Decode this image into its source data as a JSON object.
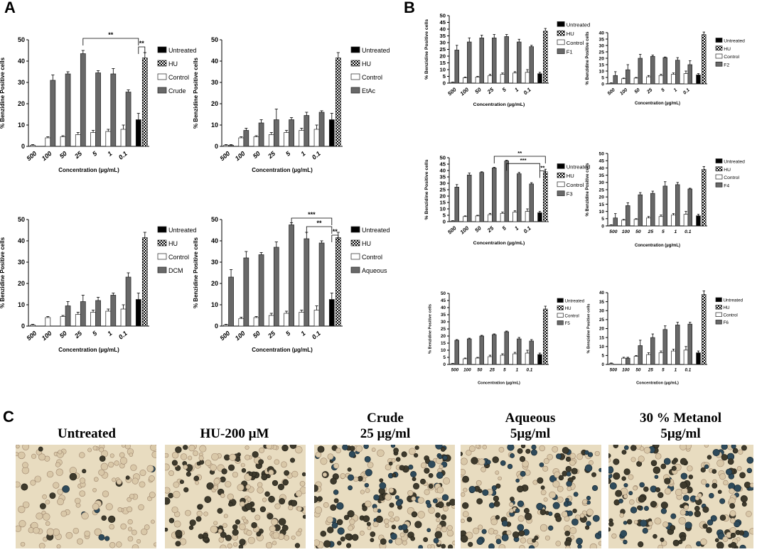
{
  "panels": {
    "a": "A",
    "b": "B",
    "c": "C"
  },
  "colors": {
    "treatment": "#686868",
    "control": "#ffffff",
    "untreated": "#000000",
    "hu_check": "#000000",
    "bar_edge": "#222222",
    "photo_bg": "#e8dcc0"
  },
  "chart_data": [
    {
      "type": "bar",
      "panel": "A",
      "treatment": "Crude",
      "ylabel": "% Benzidine Positive cells",
      "xlabel": "Concentration (µg/mL)",
      "ylim": [
        0,
        50
      ],
      "yticks": [
        0,
        10,
        20,
        30,
        40,
        50
      ],
      "categories": [
        "500",
        "100",
        "50",
        "25",
        "5",
        "1",
        "0.1"
      ],
      "series": [
        {
          "name": "Crude",
          "values": [
            0,
            31,
            34,
            43.5,
            34.5,
            34,
            25.5
          ],
          "errors": [
            0,
            2.5,
            1,
            1.5,
            1,
            2.5,
            1
          ]
        },
        {
          "name": "Control",
          "values": [
            0.5,
            4,
            4.5,
            5.5,
            6.5,
            7,
            8
          ],
          "errors": [
            0.3,
            0.5,
            0.5,
            1,
            1,
            1,
            2
          ]
        }
      ],
      "untreated": {
        "name": "Untreated",
        "value": 12.5,
        "error": 3
      },
      "hu": {
        "name": "HU",
        "value": 41.5,
        "error": 2.5
      },
      "legend": [
        "Untreated",
        "HU",
        "Control",
        "Crude"
      ],
      "significance": [
        {
          "label": "**",
          "from": "25",
          "to": "ctrl"
        },
        {
          "label": "**",
          "from": "ctrl",
          "to": "hu"
        }
      ]
    },
    {
      "type": "bar",
      "panel": "A",
      "treatment": "EtAc",
      "ylabel": "% Benzidine Positive cells",
      "xlabel": "Concentration (µg/mL)",
      "ylim": [
        0,
        50
      ],
      "yticks": [
        0,
        10,
        20,
        30,
        40,
        50
      ],
      "categories": [
        "500",
        "100",
        "50",
        "25",
        "5",
        "1",
        "0.1"
      ],
      "series": [
        {
          "name": "EtAc",
          "values": [
            0.5,
            7.5,
            11,
            12.5,
            12.5,
            14.5,
            16
          ],
          "errors": [
            0.3,
            1,
            1.5,
            5,
            1,
            1.5,
            0.7
          ]
        },
        {
          "name": "Control",
          "values": [
            0.5,
            4,
            4.5,
            5.5,
            6.5,
            7.5,
            8
          ],
          "errors": [
            0.3,
            0.5,
            0.5,
            1,
            1,
            1,
            2
          ]
        }
      ],
      "untreated": {
        "name": "Untreated",
        "value": 12.5,
        "error": 3
      },
      "hu": {
        "name": "HU",
        "value": 41.5,
        "error": 2.5
      },
      "legend": [
        "Untreated",
        "HU",
        "Control",
        "EtAc"
      ],
      "significance": []
    },
    {
      "type": "bar",
      "panel": "A",
      "treatment": "DCM",
      "ylabel": "% Benzidine Positive cells",
      "xlabel": "Concentration (µg/mL)",
      "ylim": [
        0,
        50
      ],
      "yticks": [
        0,
        10,
        20,
        30,
        40,
        50
      ],
      "categories": [
        "500",
        "100",
        "50",
        "25",
        "5",
        "1",
        "0.1"
      ],
      "series": [
        {
          "name": "DCM",
          "values": [
            0,
            0,
            9.5,
            11.5,
            12,
            14.5,
            23
          ],
          "errors": [
            0,
            0,
            2,
            3,
            1.5,
            1,
            2
          ]
        },
        {
          "name": "Control",
          "values": [
            0.5,
            4,
            4.5,
            5.5,
            6.5,
            7,
            8
          ],
          "errors": [
            0.3,
            0.5,
            0.5,
            1,
            1,
            1,
            2
          ]
        }
      ],
      "untreated": {
        "name": "Untreated",
        "value": 12.5,
        "error": 3
      },
      "hu": {
        "name": "HU",
        "value": 41.5,
        "error": 2.5
      },
      "legend": [
        "Untreated",
        "HU",
        "Control",
        "DCM"
      ],
      "significance": []
    },
    {
      "type": "bar",
      "panel": "A",
      "treatment": "Aqueous",
      "ylabel": "% Benzidine Positive cells",
      "xlabel": "Concentration (µg/mL)",
      "ylim": [
        0,
        50
      ],
      "yticks": [
        0,
        10,
        20,
        30,
        40,
        50
      ],
      "categories": [
        "500",
        "100",
        "50",
        "25",
        "5",
        "1",
        "0.1"
      ],
      "series": [
        {
          "name": "Aqueous",
          "values": [
            23,
            32,
            33.5,
            37,
            47.5,
            41,
            39
          ],
          "errors": [
            3.5,
            3,
            1,
            2.5,
            1,
            3,
            1
          ]
        },
        {
          "name": "Control",
          "values": [
            0.5,
            3.5,
            4,
            5,
            6,
            6.5,
            7.5
          ],
          "errors": [
            0.3,
            0.7,
            0.5,
            1,
            1,
            1,
            2
          ]
        }
      ],
      "untreated": {
        "name": "Untreated",
        "value": 12.5,
        "error": 3
      },
      "hu": {
        "name": "HU",
        "value": 41.5,
        "error": 2.5
      },
      "legend": [
        "Untreated",
        "HU",
        "Control",
        "Aqueous"
      ],
      "significance": [
        {
          "label": "***",
          "from": "5",
          "to": "ctrl"
        },
        {
          "label": "**",
          "from": "1",
          "to": "ctrl"
        },
        {
          "label": "**",
          "from": "ctrl",
          "to": "hu"
        }
      ]
    },
    {
      "type": "bar",
      "panel": "B",
      "treatment": "F1",
      "ylabel": "% Benzidine Positive cells",
      "xlabel": "Concentration (µg/mL)",
      "ylim": [
        0,
        50
      ],
      "yticks": [
        0,
        5,
        10,
        15,
        20,
        25,
        30,
        35,
        40,
        45,
        50
      ],
      "categories": [
        "500",
        "100",
        "50",
        "25",
        "5",
        "1",
        "0.1"
      ],
      "series": [
        {
          "name": "F1",
          "values": [
            24.5,
            30.5,
            33.5,
            33.5,
            34.5,
            30.5,
            27
          ],
          "errors": [
            3.5,
            3,
            2,
            2.5,
            1.5,
            2,
            1
          ]
        },
        {
          "name": "Control",
          "values": [
            0.5,
            4,
            4.5,
            5.5,
            6.5,
            7.5,
            8
          ],
          "errors": [
            0.3,
            0.5,
            0.5,
            1,
            1,
            1,
            2
          ]
        }
      ],
      "untreated": {
        "name": "Untreated",
        "value": 7,
        "error": 1
      },
      "hu": {
        "name": "HU",
        "value": 38.5,
        "error": 2
      },
      "legend": [
        "Untreated",
        "HU",
        "Control",
        "F1"
      ],
      "significance": []
    },
    {
      "type": "bar",
      "panel": "B",
      "treatment": "F2",
      "ylabel": "% Benzidine Positive cells",
      "xlabel": "Concentration (µg/mL)",
      "ylim": [
        0,
        40
      ],
      "yticks": [
        0,
        5,
        10,
        15,
        20,
        25,
        30,
        35,
        40
      ],
      "categories": [
        "500",
        "100",
        "50",
        "25",
        "5",
        "1",
        "0.1"
      ],
      "series": [
        {
          "name": "F2",
          "values": [
            6.5,
            11,
            20,
            21.5,
            20.5,
            18.5,
            15
          ],
          "errors": [
            3,
            4,
            3,
            1,
            0.5,
            2,
            3
          ]
        },
        {
          "name": "Control",
          "values": [
            0.5,
            4,
            4.5,
            5.5,
            6.5,
            7.5,
            8
          ],
          "errors": [
            0.3,
            0.5,
            0.5,
            1,
            1,
            1,
            2
          ]
        }
      ],
      "untreated": {
        "name": "Untreated",
        "value": 7,
        "error": 1
      },
      "hu": {
        "name": "HU",
        "value": 38.5,
        "error": 2
      },
      "legend": [
        "Untreated",
        "HU",
        "Control",
        "F2"
      ],
      "significance": []
    },
    {
      "type": "bar",
      "panel": "B",
      "treatment": "F3",
      "ylabel": "% Benzidine Positive cells",
      "xlabel": "Concentration (µg/mL)",
      "ylim": [
        0,
        50
      ],
      "yticks": [
        0,
        5,
        10,
        15,
        20,
        25,
        30,
        35,
        40,
        45,
        50
      ],
      "categories": [
        "500",
        "100",
        "50",
        "25",
        "5",
        "1",
        "0.1"
      ],
      "series": [
        {
          "name": "F3",
          "values": [
            27,
            36.5,
            38.5,
            42,
            47.5,
            37.5,
            29.5
          ],
          "errors": [
            2,
            1.5,
            0.5,
            0.5,
            0.5,
            1,
            1
          ]
        },
        {
          "name": "Control",
          "values": [
            0.5,
            4,
            4.5,
            5.5,
            6.5,
            7.5,
            8
          ],
          "errors": [
            0.3,
            0.5,
            0.5,
            1,
            1,
            1,
            2
          ]
        }
      ],
      "untreated": {
        "name": "Untreated",
        "value": 7,
        "error": 1
      },
      "hu": {
        "name": "HU",
        "value": 39,
        "error": 2
      },
      "legend": [
        "Untreated",
        "HU",
        "Control",
        "F3"
      ],
      "significance": [
        {
          "label": "**",
          "from": "25",
          "to": "hu"
        },
        {
          "label": "***",
          "from": "5",
          "to": "ctrl"
        },
        {
          "label": "**",
          "from": "ctrl",
          "to": "hu"
        }
      ]
    },
    {
      "type": "bar",
      "panel": "B",
      "treatment": "F4",
      "ylabel": "% Benzidine Positive cells",
      "xlabel": "Concentration (µg/mL)",
      "ylim": [
        0,
        50
      ],
      "yticks": [
        0,
        5,
        10,
        15,
        20,
        25,
        30,
        35,
        40,
        45,
        50
      ],
      "categories": [
        "500",
        "100",
        "50",
        "25",
        "5",
        "1",
        "0.1"
      ],
      "series": [
        {
          "name": "F4",
          "values": [
            5.5,
            14,
            21.5,
            22.5,
            27.5,
            28.5,
            25.5
          ],
          "errors": [
            3,
            2,
            1.5,
            1.5,
            3,
            1.5,
            0.5
          ]
        },
        {
          "name": "Control",
          "values": [
            0.5,
            4,
            4.5,
            5.5,
            6.5,
            7.5,
            8
          ],
          "errors": [
            0.3,
            0.5,
            0.5,
            1,
            1,
            1,
            2
          ]
        }
      ],
      "untreated": {
        "name": "Untreated",
        "value": 7,
        "error": 1
      },
      "hu": {
        "name": "HU",
        "value": 39,
        "error": 2
      },
      "legend": [
        "Untreated",
        "HU",
        "Control",
        "F4"
      ],
      "significance": []
    },
    {
      "type": "bar",
      "panel": "B",
      "treatment": "F5",
      "ylabel": "% Benzidine Positive cells",
      "xlabel": "Concentration (µg/mL)",
      "ylim": [
        0,
        50
      ],
      "yticks": [
        0,
        5,
        10,
        15,
        20,
        25,
        30,
        35,
        40,
        45,
        50
      ],
      "categories": [
        "500",
        "100",
        "50",
        "25",
        "5",
        "1",
        "0.1"
      ],
      "series": [
        {
          "name": "F5",
          "values": [
            17,
            18,
            20,
            21,
            23,
            18,
            16.5
          ],
          "errors": [
            0.5,
            0.5,
            0.5,
            0.5,
            0.5,
            1,
            1
          ]
        },
        {
          "name": "Control",
          "values": [
            0.5,
            4,
            4.5,
            5.5,
            6.5,
            7.5,
            8
          ],
          "errors": [
            0.3,
            0.5,
            0.5,
            1,
            1,
            1,
            2
          ]
        }
      ],
      "untreated": {
        "name": "Untreated",
        "value": 7,
        "error": 1
      },
      "hu": {
        "name": "HU",
        "value": 39,
        "error": 2
      },
      "legend": [
        "Untreated",
        "HU",
        "Control",
        "F5"
      ],
      "significance": []
    },
    {
      "type": "bar",
      "panel": "B",
      "treatment": "F6",
      "ylabel": "% Benzidine Positive cells",
      "xlabel": "Concentration (µg/mL)",
      "ylim": [
        0,
        40
      ],
      "yticks": [
        0,
        5,
        10,
        15,
        20,
        25,
        30,
        35,
        40
      ],
      "categories": [
        "500",
        "100",
        "50",
        "25",
        "5",
        "1",
        "0.1"
      ],
      "series": [
        {
          "name": "F6",
          "values": [
            0,
            3.5,
            10.5,
            15,
            19.5,
            22,
            22.5
          ],
          "errors": [
            0,
            0.5,
            3,
            2,
            2,
            1.5,
            1
          ]
        },
        {
          "name": "Control",
          "values": [
            0.5,
            3.5,
            4.5,
            5.5,
            6.5,
            7.5,
            8
          ],
          "errors": [
            0.3,
            0.5,
            0.5,
            1,
            1,
            1,
            2
          ]
        }
      ],
      "untreated": {
        "name": "Untreated",
        "value": 6.5,
        "error": 1
      },
      "hu": {
        "name": "HU",
        "value": 39,
        "error": 2
      },
      "legend": [
        "Untreated",
        "HU",
        "Control",
        "F6"
      ],
      "significance": []
    }
  ],
  "micrographs": [
    {
      "title_line1": "Untreated",
      "title_line2": ""
    },
    {
      "title_line1": "HU-200 µM",
      "title_line2": ""
    },
    {
      "title_line1": "Crude",
      "title_line2": "25 µg/ml"
    },
    {
      "title_line1": "Aqueous",
      "title_line2": "5µg/ml"
    },
    {
      "title_line1": "30 % Metanol",
      "title_line2": "5µg/ml"
    }
  ]
}
